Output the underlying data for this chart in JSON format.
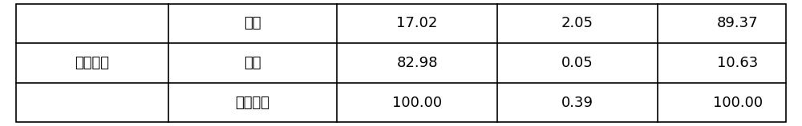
{
  "col1_merged": "有浓缩液",
  "rows": [
    [
      "精矿",
      "17.02",
      "2.05",
      "89.37"
    ],
    [
      "尾矿",
      "82.98",
      "0.05",
      "10.63"
    ],
    [
      "计算原矿",
      "100.00",
      "0.39",
      "100.00"
    ]
  ],
  "background_color": "#ffffff",
  "border_color": "#000000",
  "text_color": "#000000",
  "font_size": 13,
  "fig_width": 10.0,
  "fig_height": 1.58,
  "dpi": 100
}
